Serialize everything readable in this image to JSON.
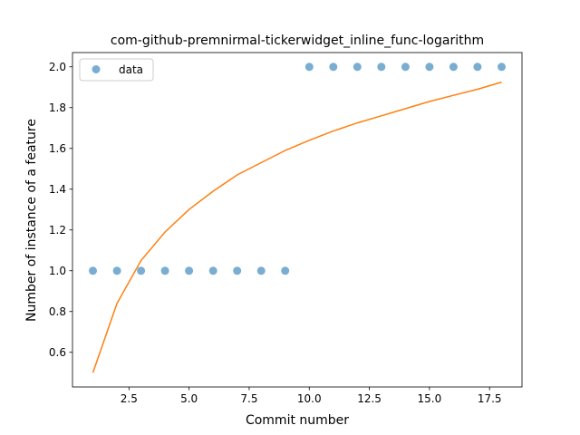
{
  "chart_data": {
    "type": "scatter",
    "title": "com-github-premnirmal-tickerwidget_inline_func-logarithm",
    "xlabel": "Commit number",
    "ylabel": "Number of instance of a feature",
    "xlim": [
      0.15,
      18.85
    ],
    "ylim": [
      0.43,
      2.07
    ],
    "xticks": [
      2.5,
      5.0,
      7.5,
      10.0,
      12.5,
      15.0,
      17.5
    ],
    "xtick_labels": [
      "2.5",
      "5.0",
      "7.5",
      "10.0",
      "12.5",
      "15.0",
      "17.5"
    ],
    "yticks": [
      0.6,
      0.8,
      1.0,
      1.2,
      1.4,
      1.6,
      1.8,
      2.0
    ],
    "ytick_labels": [
      "0.6",
      "0.8",
      "1.0",
      "1.2",
      "1.4",
      "1.6",
      "1.8",
      "2.0"
    ],
    "grid": false,
    "legend_placement": "top-left",
    "series": [
      {
        "name": "data",
        "kind": "scatter",
        "color": "#1f77b4",
        "x": [
          1,
          2,
          3,
          4,
          5,
          6,
          7,
          8,
          9,
          10,
          11,
          12,
          13,
          14,
          15,
          16,
          17,
          18
        ],
        "y": [
          1,
          1,
          1,
          1,
          1,
          1,
          1,
          1,
          1,
          2,
          2,
          2,
          2,
          2,
          2,
          2,
          2,
          2
        ]
      },
      {
        "kind": "line",
        "color": "#ff7f0e",
        "x": [
          1,
          2,
          3,
          4,
          5,
          6,
          7,
          8,
          9,
          10,
          11,
          12,
          13,
          14,
          15,
          16,
          17,
          18
        ],
        "y": [
          0.5,
          0.84,
          1.05,
          1.19,
          1.3,
          1.39,
          1.47,
          1.53,
          1.59,
          1.64,
          1.685,
          1.725,
          1.76,
          1.795,
          1.83,
          1.86,
          1.89,
          1.925
        ]
      }
    ]
  }
}
